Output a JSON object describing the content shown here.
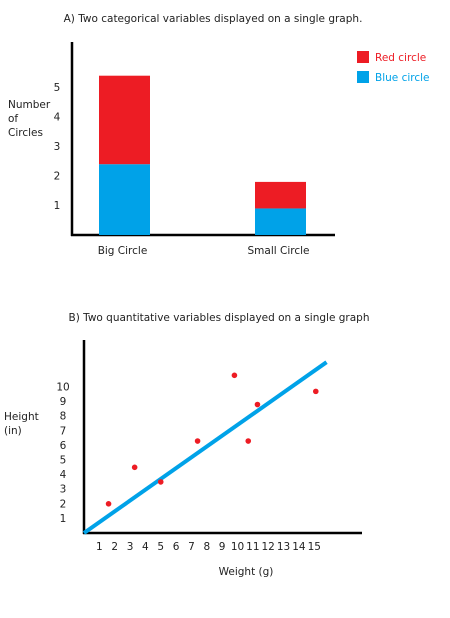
{
  "chart_data": [
    {
      "type": "bar",
      "stacked": true,
      "title": "A) Two categorical variables displayed on a single graph.",
      "ylabel": [
        "Number",
        "of",
        "Circles"
      ],
      "xlabel": "",
      "categories": [
        "Big Circle",
        "Small Circle"
      ],
      "series": [
        {
          "name": "Blue circle",
          "color": "#00a2e8",
          "values": [
            2.4,
            0.9
          ]
        },
        {
          "name": "Red circle",
          "color": "#ed1c24",
          "values": [
            3.0,
            0.9
          ]
        }
      ],
      "yticks": [
        1,
        2,
        3,
        4,
        5
      ],
      "ylim": [
        0,
        6
      ],
      "legend": {
        "placement": "top-right",
        "order": [
          "Red circle",
          "Blue circle"
        ]
      },
      "grid": false
    },
    {
      "type": "scatter",
      "title": "B) Two quantitative variables displayed on a single graph",
      "xlabel": "Weight (g)",
      "ylabel": [
        "Height",
        "(in)"
      ],
      "xticks": [
        1,
        2,
        3,
        4,
        5,
        6,
        7,
        8,
        9,
        10,
        11,
        12,
        13,
        14,
        15
      ],
      "yticks": [
        1,
        2,
        3,
        4,
        5,
        6,
        7,
        8,
        9,
        10
      ],
      "xlim": [
        0,
        16.5
      ],
      "ylim": [
        0,
        11.7
      ],
      "points": [
        {
          "x": 1.6,
          "y": 2.0
        },
        {
          "x": 3.3,
          "y": 4.5
        },
        {
          "x": 5.0,
          "y": 3.5
        },
        {
          "x": 7.4,
          "y": 6.3
        },
        {
          "x": 9.8,
          "y": 10.8
        },
        {
          "x": 10.7,
          "y": 6.3
        },
        {
          "x": 11.3,
          "y": 8.8
        },
        {
          "x": 15.1,
          "y": 9.7
        }
      ],
      "point_color": "#ed1c24",
      "trendline": {
        "color": "#00a2e8",
        "x": [
          0,
          15.8
        ],
        "y": [
          0,
          11.7
        ]
      },
      "grid": false
    }
  ]
}
